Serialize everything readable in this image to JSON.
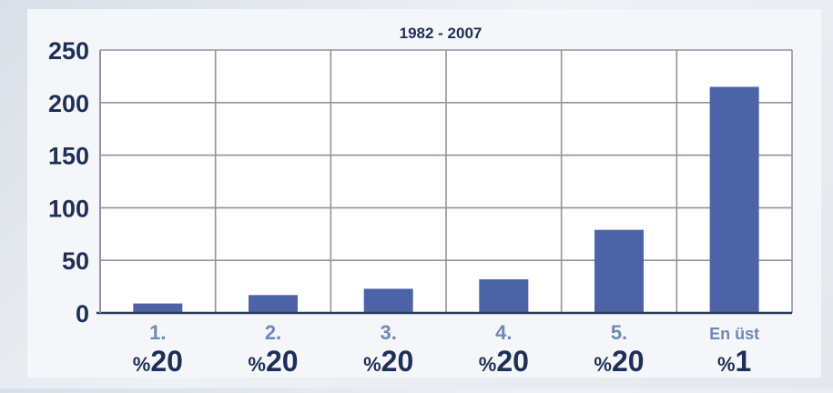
{
  "chart_data": {
    "type": "bar",
    "title": "1982 - 2007",
    "xlabel": "",
    "ylabel": "",
    "ylim": [
      0,
      250
    ],
    "yticks": [
      0,
      50,
      100,
      150,
      200,
      250
    ],
    "grid": true,
    "categories": [
      {
        "rank": "1.",
        "share": "%20"
      },
      {
        "rank": "2.",
        "share": "%20"
      },
      {
        "rank": "3.",
        "share": "%20"
      },
      {
        "rank": "4.",
        "share": "%20"
      },
      {
        "rank": "5.",
        "share": "%20"
      },
      {
        "rank": "En üst",
        "share": "%1"
      }
    ],
    "values": [
      9,
      17,
      23,
      32,
      79,
      215
    ],
    "colors": {
      "bar": "#4d63a8",
      "grid": "#8f959c",
      "plot_bg": "#ffffff",
      "text": "#1f2f56",
      "tick_text": "#7088b8"
    }
  }
}
